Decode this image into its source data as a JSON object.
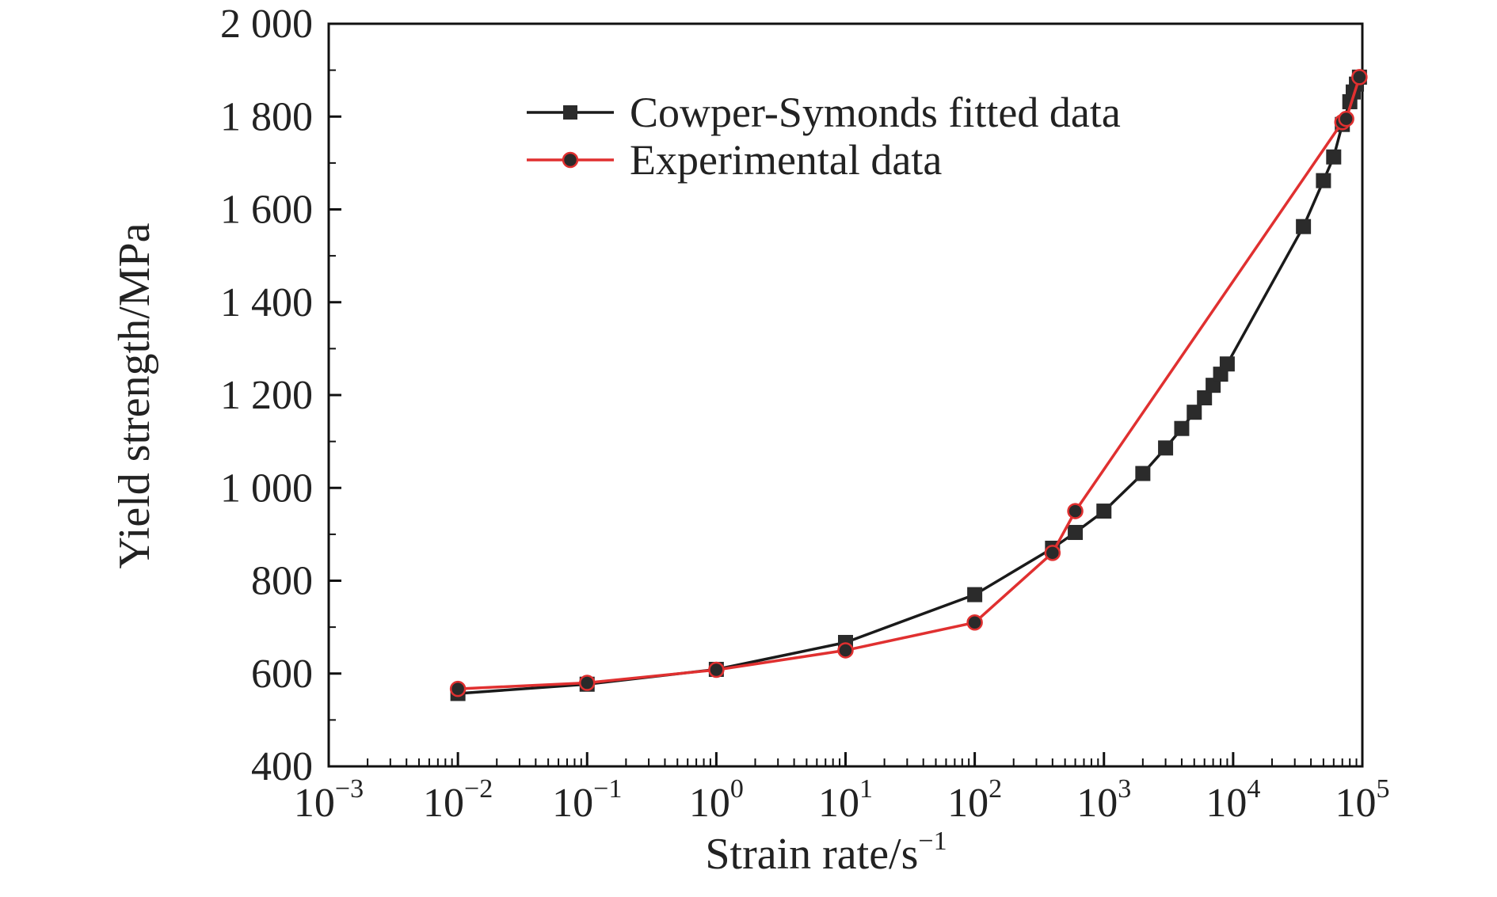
{
  "chart_data": {
    "type": "line",
    "title": "",
    "xlabel": "Strain rate/s",
    "xlabel_superscript": "−1",
    "ylabel": "Yield strength/MPa",
    "x_scale": "log",
    "xlim": [
      0.001,
      100000
    ],
    "ylim": [
      400,
      2000
    ],
    "grid": false,
    "legend_position": "top-center",
    "x_ticks": [
      {
        "base": "10",
        "exp": "−3"
      },
      {
        "base": "10",
        "exp": "−2"
      },
      {
        "base": "10",
        "exp": "−1"
      },
      {
        "base": "10",
        "exp": "0"
      },
      {
        "base": "10",
        "exp": "1"
      },
      {
        "base": "10",
        "exp": "2"
      },
      {
        "base": "10",
        "exp": "3"
      },
      {
        "base": "10",
        "exp": "4"
      },
      {
        "base": "10",
        "exp": "5"
      }
    ],
    "y_ticks": [
      "400",
      "600",
      "800",
      "1 000",
      "1 200",
      "1 400",
      "1 600",
      "1 800",
      "2 000"
    ],
    "series": [
      {
        "name": "Cowper-Symonds fitted data",
        "color": "#1a1a1a",
        "marker": "square",
        "x": [
          0.01,
          0.1,
          1,
          10,
          100,
          400,
          600,
          1000,
          2000,
          3000,
          4000,
          5000,
          6000,
          7000,
          8000,
          9000,
          35000,
          50000,
          60000,
          70000,
          80000,
          85000,
          90000,
          95000
        ],
        "y": [
          557,
          577,
          609,
          667,
          770,
          870,
          904,
          950,
          1031,
          1086,
          1128,
          1163,
          1194,
          1221,
          1245,
          1267,
          1563,
          1662,
          1713,
          1783,
          1832,
          1853,
          1870,
          1885
        ]
      },
      {
        "name": "Experimental data",
        "color": "#e03030",
        "marker": "circle",
        "x": [
          0.01,
          0.1,
          1,
          10,
          100,
          400,
          600,
          70000,
          75000,
          95000
        ],
        "y": [
          567,
          580,
          608,
          650,
          710,
          860,
          950,
          1788,
          1795,
          1885
        ]
      }
    ]
  }
}
